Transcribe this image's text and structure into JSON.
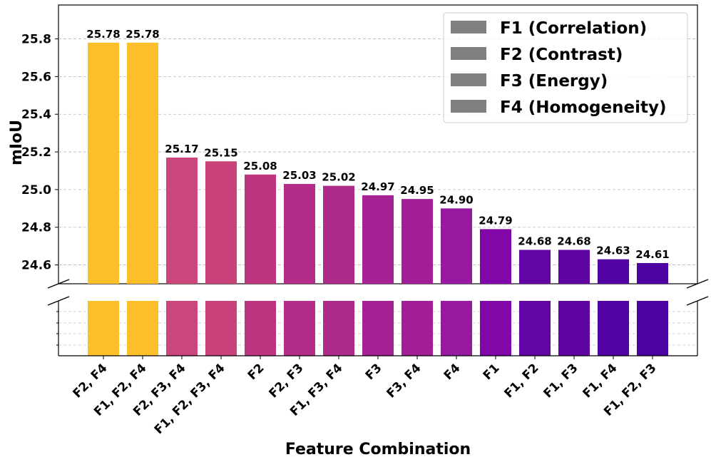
{
  "chart_data": {
    "type": "bar",
    "title": "",
    "xlabel": "Feature Combination",
    "ylabel": "mIoU",
    "categories": [
      "F2, F4",
      "F1, F2, F4",
      "F2, F3, F4",
      "F1, F2, F3, F4",
      "F2",
      "F2, F3",
      "F1, F3, F4",
      "F3",
      "F3, F4",
      "F4",
      "F1",
      "F1, F2",
      "F1, F3",
      "F1, F4",
      "F1, F2, F3"
    ],
    "values": [
      25.78,
      25.78,
      25.17,
      25.15,
      25.08,
      25.03,
      25.02,
      24.97,
      24.95,
      24.9,
      24.79,
      24.68,
      24.68,
      24.63,
      24.61
    ],
    "value_labels": [
      "25.78",
      "25.78",
      "25.17",
      "25.15",
      "25.08",
      "25.03",
      "25.02",
      "24.97",
      "24.95",
      "24.90",
      "24.79",
      "24.68",
      "24.68",
      "24.63",
      "24.61"
    ],
    "colors": [
      "#fbbf2a",
      "#fbbf2a",
      "#cb467a",
      "#c84178",
      "#bd357f",
      "#b32d88",
      "#ae2a89",
      "#a42293",
      "#a11e95",
      "#9619a0",
      "#8207a9",
      "#6304a4",
      "#6104a4",
      "#5303a3",
      "#4c02a1"
    ],
    "ylim": [
      24.5,
      25.98
    ],
    "yticks": [
      "24.6",
      "24.8",
      "25.0",
      "25.2",
      "25.4",
      "25.6",
      "25.8"
    ],
    "grid": true,
    "broken_axis": true,
    "legend": {
      "placement": "top-right",
      "entries": [
        "F1 (Correlation)",
        "F2 (Contrast)",
        "F3 (Energy)",
        "F4 (Homogeneity)"
      ],
      "swatch_color": "#808080"
    }
  }
}
